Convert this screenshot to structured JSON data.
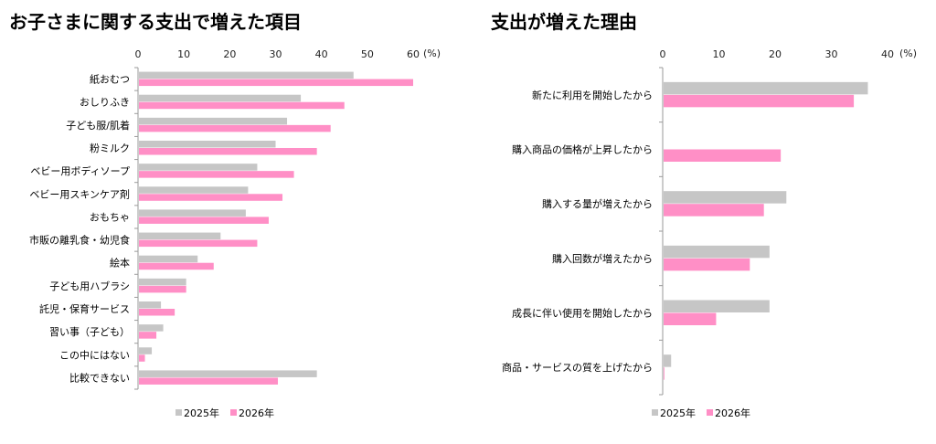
{
  "colors": {
    "s2025": "#c6c6c6",
    "s2026": "#ff8fc6",
    "axis": "#9a9a9a"
  },
  "chart_data": [
    {
      "type": "bar",
      "orientation": "horizontal",
      "title": "お子さまに関する支出で増えた項目",
      "unit": "(%)",
      "xlim": [
        0,
        60
      ],
      "ticks": [
        0,
        10,
        20,
        30,
        40,
        50,
        60
      ],
      "categories": [
        "紙おむつ",
        "おしりふき",
        "子ども服/肌着",
        "粉ミルク",
        "ベビー用ボディソープ",
        "ベビー用スキンケア剤",
        "おもちゃ",
        "市販の離乳食・幼児食",
        "絵本",
        "子ども用ハブラシ",
        "託児・保育サービス",
        "習い事（子ども）",
        "この中にはない",
        "比較できない"
      ],
      "series": [
        {
          "name": "2025年",
          "values": [
            47,
            35.5,
            32.5,
            30,
            26,
            24,
            23.5,
            18,
            13,
            10.5,
            5,
            5.5,
            3,
            39
          ]
        },
        {
          "name": "2026年",
          "values": [
            60,
            45,
            42,
            39,
            34,
            31.5,
            28.5,
            26,
            16.5,
            10.5,
            8,
            4,
            1.5,
            30.5
          ]
        }
      ],
      "legend": "bottom"
    },
    {
      "type": "bar",
      "orientation": "horizontal",
      "title": "支出が増えた理由",
      "unit": "(%)",
      "xlim": [
        0,
        40
      ],
      "ticks": [
        0,
        10,
        20,
        30,
        40
      ],
      "categories": [
        "新たに利用を開始したから",
        "購入商品の価格が上昇したから",
        "購入する量が増えたから",
        "購入回数が増えたから",
        "成長に伴い使用を開始したから",
        "商品・サービスの質を上げたから"
      ],
      "series": [
        {
          "name": "2025年",
          "values": [
            36.5,
            0,
            22,
            19,
            19,
            1.5
          ]
        },
        {
          "name": "2026年",
          "values": [
            34,
            21,
            18,
            15.5,
            9.5,
            0.3
          ]
        }
      ],
      "legend": "bottom"
    }
  ]
}
